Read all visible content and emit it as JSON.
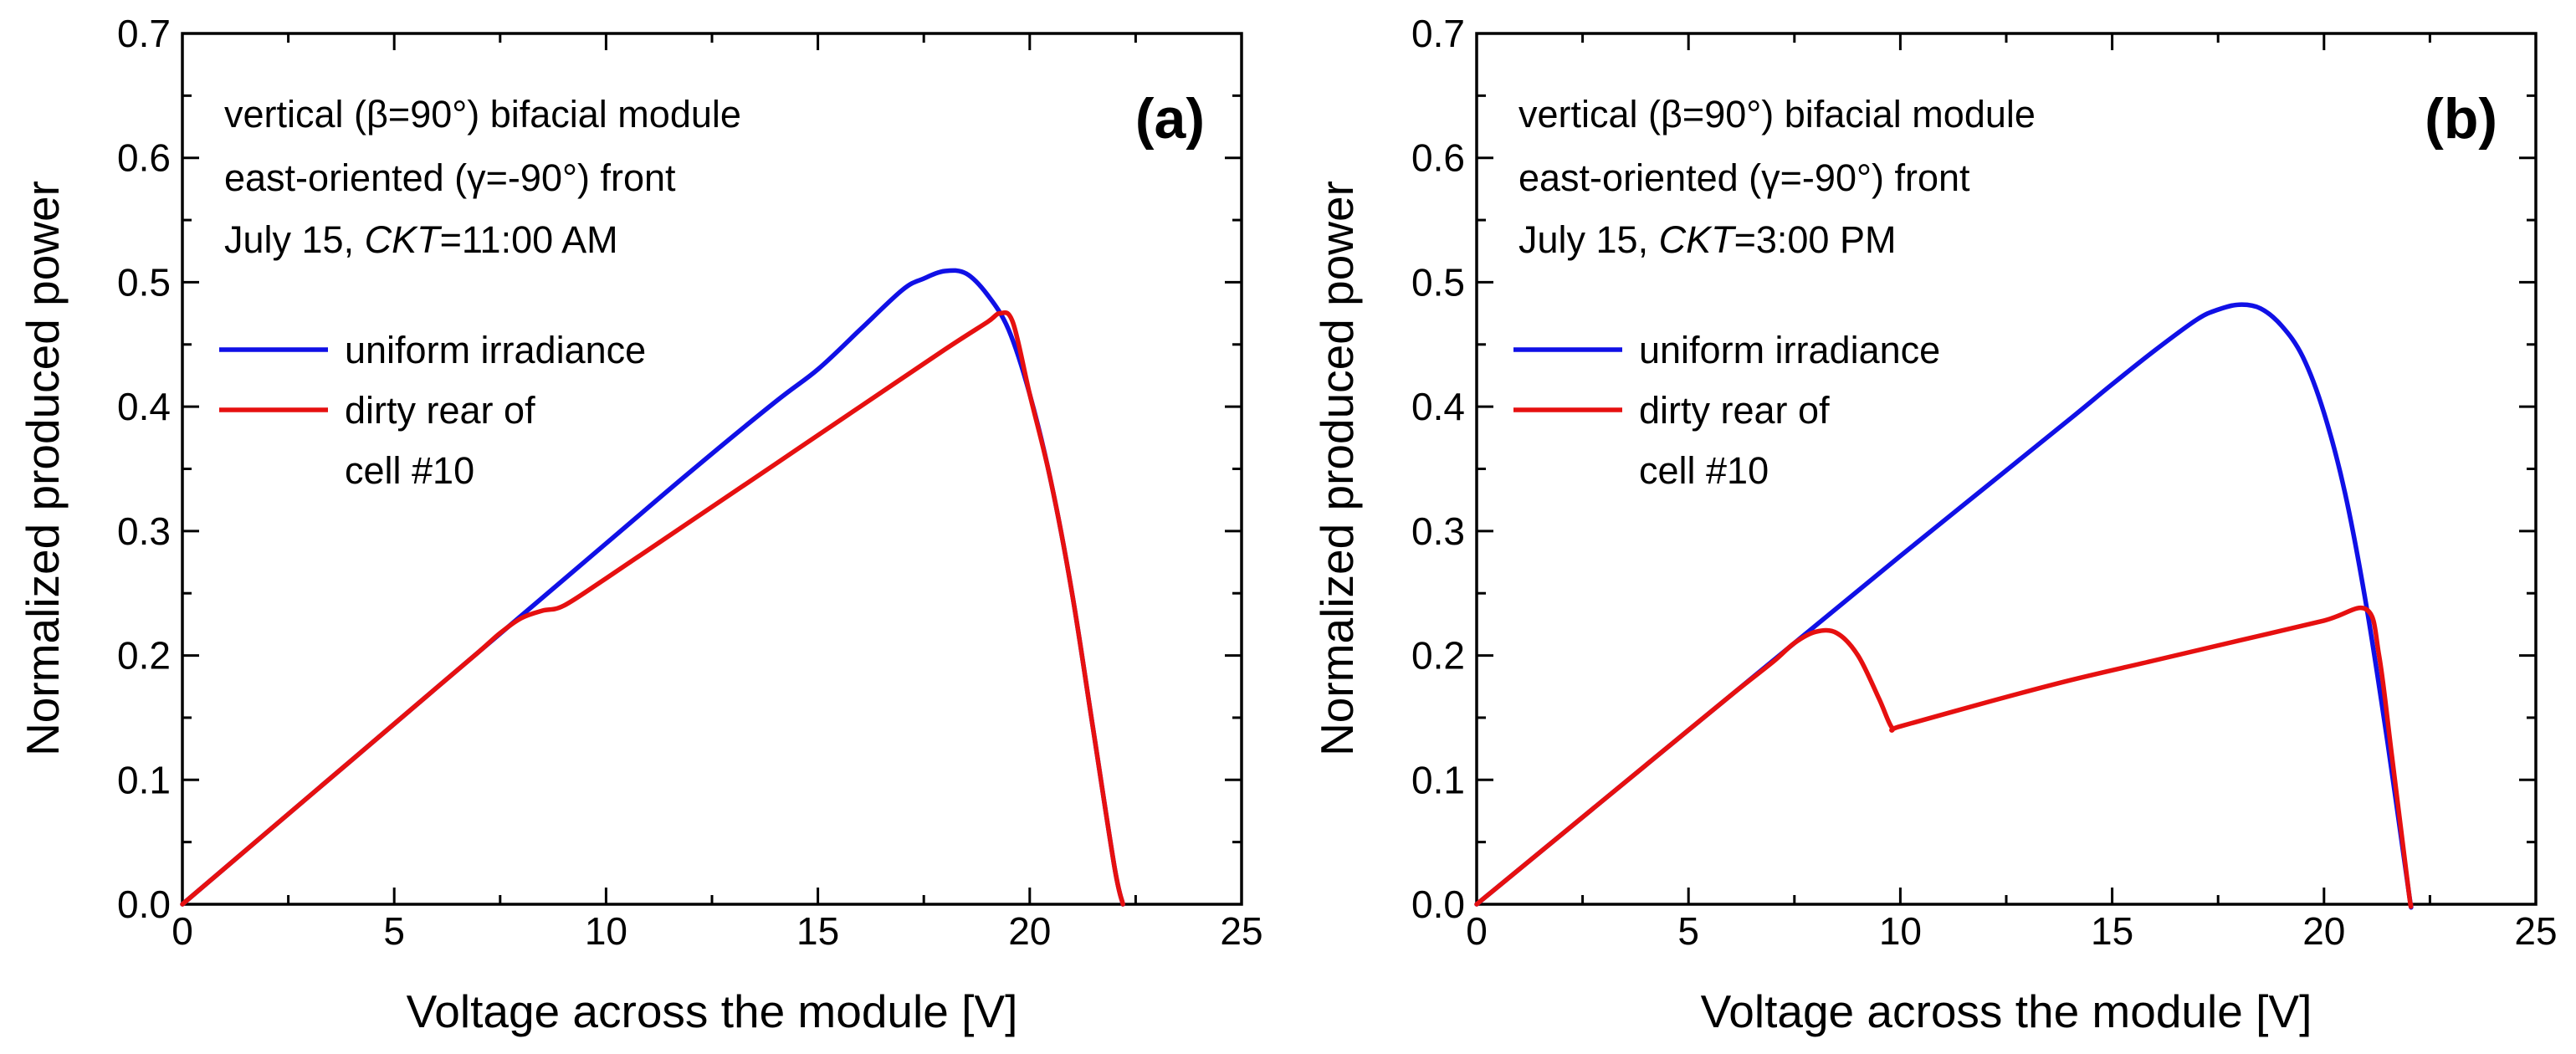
{
  "chart_data": [
    {
      "type": "line",
      "panel_label": "(a)",
      "xlabel": "Voltage across the module [V]",
      "ylabel": "Normalized produced power",
      "xlim": [
        0,
        25
      ],
      "ylim": [
        0,
        0.7
      ],
      "xticks": [
        0,
        5,
        10,
        15,
        20,
        25
      ],
      "yticks": [
        0.0,
        0.1,
        0.2,
        0.3,
        0.4,
        0.5,
        0.6,
        0.7
      ],
      "xtick_labels": [
        "0",
        "5",
        "10",
        "15",
        "20",
        "25"
      ],
      "ytick_labels": [
        "0.0",
        "0.1",
        "0.2",
        "0.3",
        "0.4",
        "0.5",
        "0.6",
        "0.7"
      ],
      "annotations": [
        "vertical (β=90°) bifacial module",
        "east-oriented (γ=-90°) front",
        "July 15, CKT=11:00 AM"
      ],
      "annotation_time": {
        "prefix": "July 15, ",
        "italic": "CKT",
        "suffix": "=11:00 AM"
      },
      "legend_position": "center-left",
      "series": [
        {
          "name": "uniform irradiance",
          "color": "#1010e6",
          "x": [
            0,
            2,
            4,
            6,
            8,
            10,
            12,
            14,
            15,
            16,
            17,
            17.5,
            18,
            18.5,
            19,
            19.5,
            20,
            20.5,
            21,
            21.5,
            22,
            22.2
          ],
          "y": [
            0,
            0.058,
            0.116,
            0.174,
            0.232,
            0.29,
            0.348,
            0.404,
            0.43,
            0.462,
            0.494,
            0.503,
            0.509,
            0.507,
            0.49,
            0.462,
            0.41,
            0.34,
            0.25,
            0.14,
            0.03,
            0.0
          ]
        },
        {
          "name": "dirty rear of\ncell #10",
          "legend_lines": [
            "dirty rear of",
            "cell #10"
          ],
          "color": "#e61010",
          "x": [
            0,
            2,
            4,
            6,
            7,
            7.5,
            8,
            8.5,
            9,
            10,
            12,
            14,
            16,
            18,
            19,
            19.3,
            19.6,
            20,
            20.5,
            21,
            21.5,
            22,
            22.2
          ],
          "y": [
            0,
            0.058,
            0.116,
            0.174,
            0.203,
            0.218,
            0.23,
            0.236,
            0.24,
            0.262,
            0.308,
            0.354,
            0.4,
            0.446,
            0.468,
            0.475,
            0.468,
            0.41,
            0.34,
            0.25,
            0.14,
            0.03,
            0.0
          ]
        }
      ]
    },
    {
      "type": "line",
      "panel_label": "(b)",
      "xlabel": "Voltage across the module [V]",
      "ylabel": "Normalized produced power",
      "xlim": [
        0,
        25
      ],
      "ylim": [
        0,
        0.7
      ],
      "xticks": [
        0,
        5,
        10,
        15,
        20,
        25
      ],
      "yticks": [
        0.0,
        0.1,
        0.2,
        0.3,
        0.4,
        0.5,
        0.6,
        0.7
      ],
      "xtick_labels": [
        "0",
        "5",
        "10",
        "15",
        "20",
        "25"
      ],
      "ytick_labels": [
        "0.0",
        "0.1",
        "0.2",
        "0.3",
        "0.4",
        "0.5",
        "0.6",
        "0.7"
      ],
      "annotations": [
        "vertical (β=90°) bifacial module",
        "east-oriented (γ=-90°) front",
        "July 15, CKT=3:00 PM"
      ],
      "annotation_time": {
        "prefix": "July 15, ",
        "italic": "CKT",
        "suffix": "=3:00 PM"
      },
      "legend_position": "center-left",
      "series": [
        {
          "name": "uniform irradiance",
          "color": "#1010e6",
          "x": [
            0,
            2,
            4,
            6,
            8,
            10,
            12,
            14,
            15,
            16,
            17,
            17.5,
            18,
            18.5,
            19,
            19.5,
            20,
            20.5,
            21,
            21.5,
            22,
            22.05
          ],
          "y": [
            0,
            0.056,
            0.112,
            0.168,
            0.224,
            0.28,
            0.335,
            0.39,
            0.418,
            0.445,
            0.47,
            0.478,
            0.482,
            0.479,
            0.465,
            0.44,
            0.395,
            0.33,
            0.24,
            0.13,
            0.01,
            0.0
          ]
        },
        {
          "name": "dirty rear of\ncell #10",
          "legend_lines": [
            "dirty rear of",
            "cell #10"
          ],
          "color": "#e61010",
          "x": [
            0,
            2,
            4,
            6,
            7,
            7.5,
            8,
            8.5,
            9,
            9.5,
            9.8,
            10,
            12,
            14,
            16,
            18,
            20,
            21,
            21.3,
            21.6,
            22,
            22.05
          ],
          "y": [
            0,
            0.056,
            0.112,
            0.168,
            0.195,
            0.21,
            0.219,
            0.218,
            0.2,
            0.165,
            0.142,
            0.143,
            0.162,
            0.18,
            0.196,
            0.212,
            0.228,
            0.237,
            0.2,
            0.12,
            0.01,
            0.0
          ]
        }
      ]
    }
  ]
}
